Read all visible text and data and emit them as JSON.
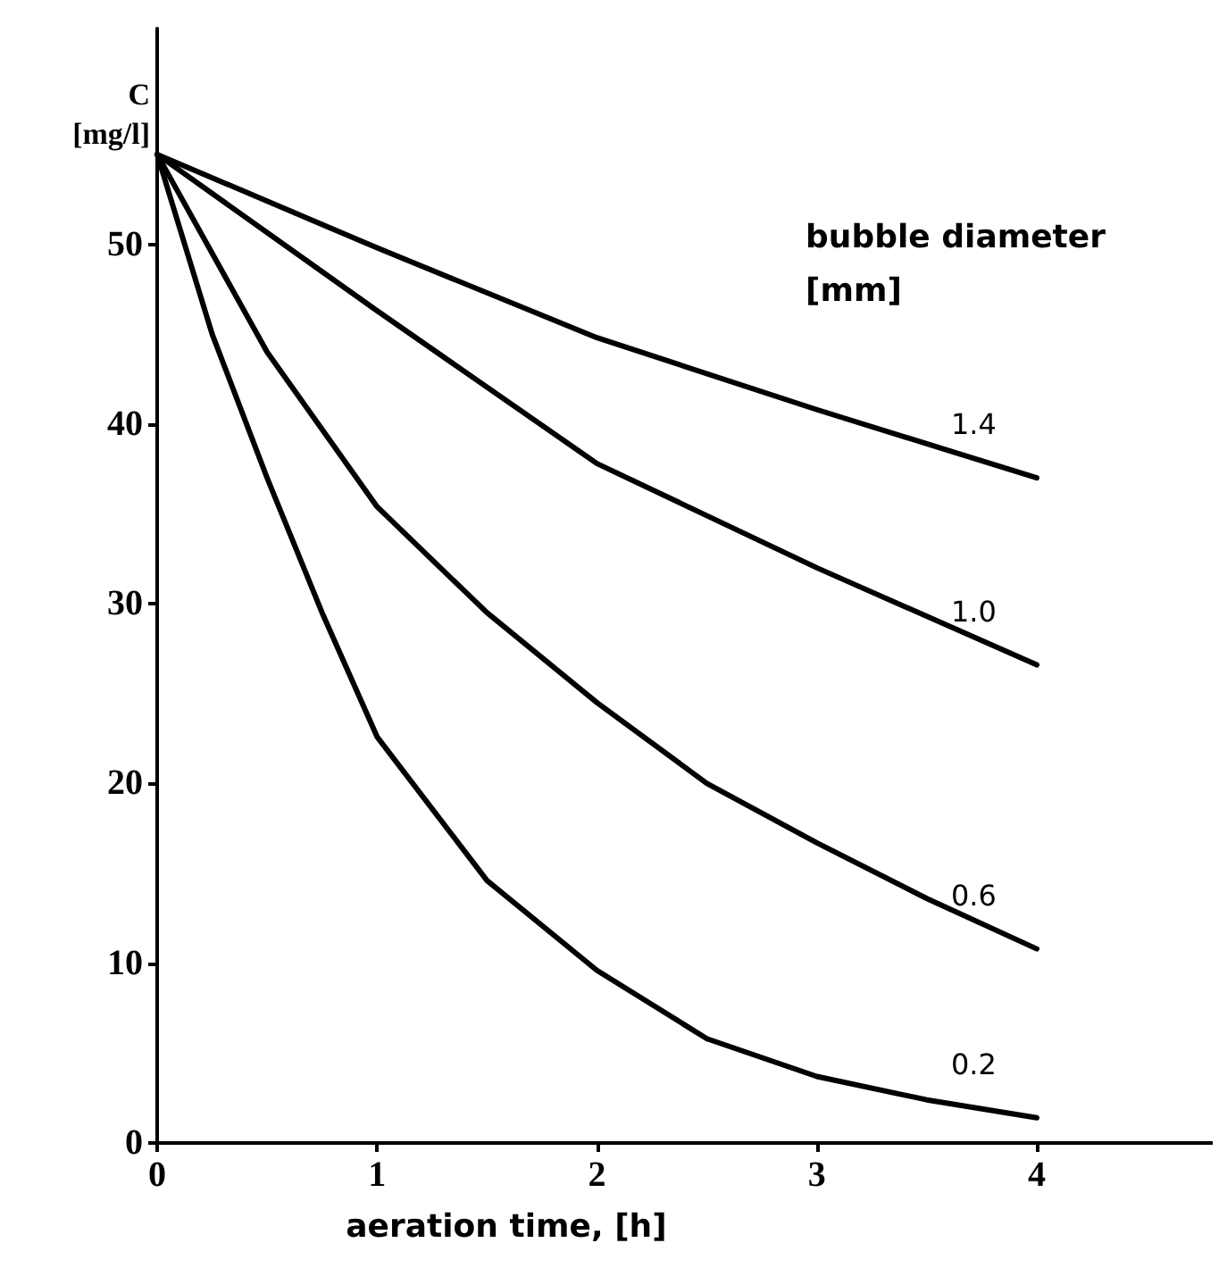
{
  "chart_data": {
    "type": "line",
    "xlabel": "aeration time, [h]",
    "ylabel": "C\n[mg/l]",
    "legend_title": "bubble diameter\n[mm]",
    "xlim": [
      0,
      4.8
    ],
    "xticks": [
      0,
      1,
      2,
      3,
      4
    ],
    "ylim": [
      0,
      62
    ],
    "yticks": [
      0,
      10,
      20,
      30,
      40,
      50
    ],
    "grid": false,
    "marker": "none",
    "line_style": "solid",
    "series": [
      {
        "name": "1.4",
        "color": "#000000",
        "x": [
          0,
          1,
          2,
          3,
          4
        ],
        "values": [
          55,
          49.8,
          44.8,
          40.8,
          37
        ]
      },
      {
        "name": "1.0",
        "color": "#000000",
        "x": [
          0,
          1,
          2,
          3,
          4
        ],
        "values": [
          55,
          46.3,
          37.8,
          32,
          26.6
        ]
      },
      {
        "name": "0.6",
        "color": "#000000",
        "x": [
          0,
          0.5,
          1,
          1.5,
          2,
          2.5,
          3,
          3.5,
          4
        ],
        "values": [
          55,
          44,
          35.4,
          29.5,
          24.5,
          20,
          16.7,
          13.6,
          10.8
        ]
      },
      {
        "name": "0.2",
        "color": "#000000",
        "x": [
          0,
          0.25,
          0.5,
          0.75,
          1,
          1.5,
          2,
          2.5,
          3,
          3.5,
          4
        ],
        "values": [
          55,
          45,
          37,
          29.5,
          22.6,
          14.6,
          9.6,
          5.8,
          3.7,
          2.4,
          1.4
        ]
      }
    ]
  }
}
